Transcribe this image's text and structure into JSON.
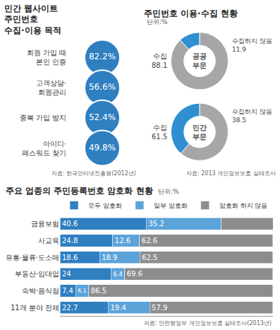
{
  "chart_data": [
    {
      "type": "scatter",
      "title": "민간 웹사이트\n주민번호\n수집·이용 목적",
      "categories": [
        "회원 가입 때\n본인 인증",
        "고객상담·\n회원관리",
        "중복 가입 방지",
        "아이디·\n패스워드 찾기"
      ],
      "values": [
        82.2,
        56.6,
        52.4,
        49.8
      ],
      "value_labels": [
        "82.2%",
        "56.6%",
        "52.4%",
        "49.8%"
      ],
      "data_labels": true,
      "marker": "circle",
      "color": "#2f7fc1",
      "tick_labels": "y",
      "source": "자료: 한국인터넷진흥원(2012년)"
    },
    {
      "type": "pie",
      "title": "주민번호 이용·수집 현황",
      "subtitle": "단위:%",
      "categories": [
        "수집",
        "수집하지 않음"
      ],
      "colors": [
        "#a6a6a6",
        "#2f8fd0"
      ],
      "series": [
        {
          "name": "공공\n부문",
          "values": [
            88.1,
            11.9
          ]
        },
        {
          "name": "민간\n부문",
          "values": [
            61.5,
            38.5
          ]
        }
      ],
      "data_labels": true,
      "source": "자료: 2013 개인정보보호 실태조사"
    },
    {
      "type": "bar",
      "orientation": "horizontal",
      "stacked": true,
      "title": "주요 업종의 주민등록번호 암호화 현황",
      "subtitle": "단위:%",
      "categories": [
        "금융보험",
        "사교육",
        "유통·물류·도소매",
        "부동산·임대업",
        "숙박·음식점",
        "11개 분야 전체"
      ],
      "series": [
        {
          "name": "모두 암호화",
          "color": "#2f7fc1",
          "values": [
            40.6,
            24.8,
            18.6,
            24,
            7.4,
            22.7
          ]
        },
        {
          "name": "일부 암호화",
          "color": "#5ba3d9",
          "values": [
            35.2,
            12.6,
            18.9,
            6.4,
            6.1,
            19.4
          ]
        },
        {
          "name": "암호화 하지 않음",
          "color": "#8d8d8d",
          "values": [
            24.3,
            62.6,
            62.5,
            69.6,
            86.5,
            57.9
          ]
        }
      ],
      "xlim": [
        0,
        100.1
      ],
      "xticks": [],
      "data_labels": true,
      "legend": "top",
      "tick_labels": "y",
      "source": "자료: 안전행정부 개인정보보호 실태조사(2013년)"
    }
  ]
}
